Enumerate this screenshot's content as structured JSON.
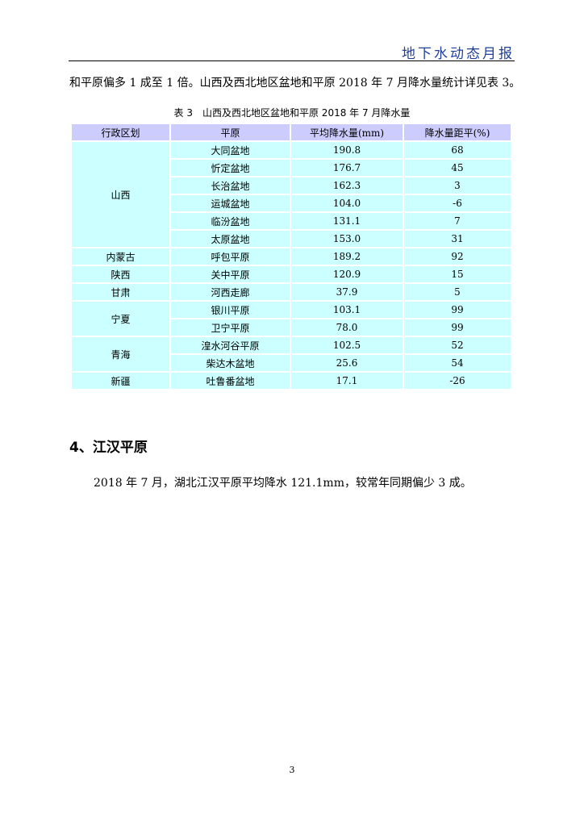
{
  "header": {
    "title": "地下水动态月报"
  },
  "paragraph1": "和平原偏多 1 成至 1 倍。山西及西北地区盆地和平原 2018 年 7 月降水量统计详见表 3。",
  "table": {
    "caption": "表 3　山西及西北地区盆地和平原 2018 年 7 月降水量",
    "columns": [
      "行政区划",
      "平原",
      "平均降水量(mm)",
      "降水量距平(%)"
    ],
    "groups": [
      {
        "region": "山西",
        "rows": [
          [
            "大同盆地",
            "190.8",
            "68"
          ],
          [
            "忻定盆地",
            "176.7",
            "45"
          ],
          [
            "长治盆地",
            "162.3",
            "3"
          ],
          [
            "运城盆地",
            "104.0",
            "-6"
          ],
          [
            "临汾盆地",
            "131.1",
            "7"
          ],
          [
            "太原盆地",
            "153.0",
            "31"
          ]
        ]
      },
      {
        "region": "内蒙古",
        "rows": [
          [
            "呼包平原",
            "189.2",
            "92"
          ]
        ]
      },
      {
        "region": "陕西",
        "rows": [
          [
            "关中平原",
            "120.9",
            "15"
          ]
        ]
      },
      {
        "region": "甘肃",
        "rows": [
          [
            "河西走廊",
            "37.9",
            "5"
          ]
        ]
      },
      {
        "region": "宁夏",
        "rows": [
          [
            "银川平原",
            "103.1",
            "99"
          ],
          [
            "卫宁平原",
            "78.0",
            "99"
          ]
        ]
      },
      {
        "region": "青海",
        "rows": [
          [
            "湟水河谷平原",
            "102.5",
            "52"
          ],
          [
            "柴达木盆地",
            "25.6",
            "54"
          ]
        ]
      },
      {
        "region": "新疆",
        "rows": [
          [
            "吐鲁番盆地",
            "17.1",
            "-26"
          ]
        ]
      }
    ]
  },
  "section": {
    "heading": "4、江汉平原",
    "paragraph": "2018 年 7 月，湖北江汉平原平均降水 121.1mm，较常年同期偏少 3 成。"
  },
  "page_number": "3",
  "colors": {
    "header_title": "#1f3f9f",
    "table_header_bg": "#ccccff",
    "table_body_bg": "#ccffff"
  }
}
